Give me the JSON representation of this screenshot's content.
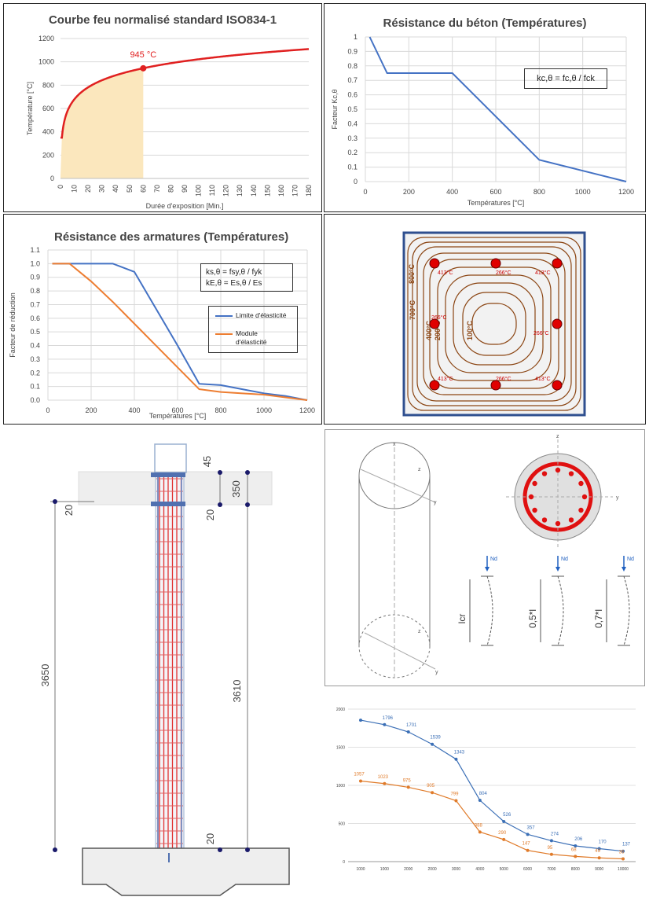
{
  "panel1": {
    "chart_data": {
      "type": "line",
      "title": "Courbe feu normalisé standard ISO834-1",
      "xlabel": "Durée d'exposition [Min.]",
      "ylabel": "Température [°C]",
      "ylim": [
        0,
        1200
      ],
      "yticks": [
        "0",
        "200",
        "400",
        "600",
        "800",
        "1000",
        "1200"
      ],
      "xticks": [
        "0",
        "10",
        "20",
        "30",
        "40",
        "50",
        "60",
        "70",
        "80",
        "90",
        "100",
        "110",
        "120",
        "130",
        "140",
        "150",
        "160",
        "170",
        "180"
      ],
      "xlim": [
        0,
        180
      ],
      "grid": true,
      "highlight": {
        "x": 60,
        "y": 945,
        "label": "945 °C"
      },
      "colors": {
        "line": "#e02020",
        "fill": "#fbe7bd"
      }
    }
  },
  "panel2": {
    "chart_data": {
      "type": "line",
      "title": "Résistance du béton (Températures)",
      "xlabel": "Températures [°C]",
      "ylabel": "Facteur Kc,θ",
      "xlim": [
        0,
        1200
      ],
      "ylim": [
        0,
        1
      ],
      "xticks": [
        "0",
        "200",
        "400",
        "600",
        "800",
        "1000",
        "1200"
      ],
      "yticks": [
        "0",
        "0.1",
        "0.2",
        "0.3",
        "0.4",
        "0.5",
        "0.6",
        "0.7",
        "0.8",
        "0.9",
        "1"
      ],
      "x": [
        20,
        100,
        400,
        600,
        800,
        1200
      ],
      "y": [
        1,
        0.75,
        0.75,
        0.45,
        0.15,
        0
      ],
      "annotation": "kc,θ = fc,θ / fck",
      "colors": {
        "line": "#4472c4"
      }
    }
  },
  "panel3": {
    "chart_data": {
      "type": "line",
      "title": "Résistance des armatures (Températures)",
      "xlabel": "Températures [°C]",
      "ylabel": "Facteur de réduction",
      "xlim": [
        0,
        1200
      ],
      "ylim": [
        0,
        1.1
      ],
      "xticks": [
        "0",
        "200",
        "400",
        "600",
        "800",
        "1000",
        "1200"
      ],
      "yticks": [
        "0.0",
        "0.1",
        "0.2",
        "0.3",
        "0.4",
        "0.5",
        "0.6",
        "0.7",
        "0.8",
        "0.9",
        "1.0",
        "1.1"
      ],
      "annotation_lines": [
        "ks,θ = fsy,θ / fyk",
        "kE,θ = Es,θ / Es"
      ],
      "series": [
        {
          "name": "Limite d'élasticité",
          "color": "#4472c4",
          "x": [
            20,
            100,
            200,
            300,
            400,
            500,
            600,
            700,
            800,
            900,
            1000,
            1100,
            1200
          ],
          "y": [
            1,
            1,
            1,
            1,
            0.94,
            0.67,
            0.4,
            0.12,
            0.11,
            0.08,
            0.05,
            0.03,
            0
          ]
        },
        {
          "name": "Module d'élasticité",
          "color": "#ed7d31",
          "x": [
            20,
            100,
            200,
            300,
            400,
            500,
            600,
            700,
            800,
            900,
            1000,
            1100,
            1200
          ],
          "y": [
            1,
            1,
            0.87,
            0.72,
            0.56,
            0.4,
            0.24,
            0.08,
            0.06,
            0.05,
            0.04,
            0.02,
            0
          ]
        }
      ],
      "legend": "right"
    }
  },
  "panel4": {
    "contour_labels": [
      "800°C",
      "700°C",
      "400°C",
      "200°C",
      "100°C"
    ],
    "bar_labels": {
      "tl": "413°C",
      "tm": "266°C",
      "tr": "413°C",
      "ml": "266°C",
      "mr": "266°C",
      "bl": "413°C",
      "bm": "266°C",
      "br": "413°C"
    },
    "colors": {
      "frame": "#2f4f8f",
      "contour": "#8b4513",
      "bar": "#e00000",
      "label": "#cc0000"
    }
  },
  "panel5": {
    "dims": {
      "d45": "45",
      "d350": "350",
      "d20a": "20",
      "d20b": "20",
      "d20c": "20",
      "d3650": "3650",
      "d3610": "3610"
    }
  },
  "panel6": {
    "axis_labels": {
      "x": "x",
      "z": "z",
      "y": "y",
      "z2": "z",
      "y2": "y",
      "y3": "y",
      "z3": "z"
    },
    "load_label": "Nd",
    "buckling": [
      "lcr",
      "0,5*l",
      "0,7*l"
    ]
  },
  "panel7": {
    "chart_data": {
      "type": "line",
      "categories": [
        "1000",
        "1000",
        "2000",
        "2000",
        "3000",
        "4000",
        "5000",
        "6000",
        "7000",
        "8000",
        "9000",
        "10000"
      ],
      "yticks": [
        "0",
        "500",
        "1000",
        "1500",
        "2000"
      ],
      "ylim": [
        0,
        2000
      ],
      "series": [
        {
          "color": "#3b6fb6",
          "values": [
            1855,
            1796,
            1701,
            1539,
            1343,
            804,
            526,
            357,
            274,
            206,
            170,
            137
          ],
          "labels": [
            "",
            "1796",
            "1701",
            "1539",
            "1343",
            "804",
            "526",
            "357",
            "274",
            "206",
            "170",
            "137"
          ]
        },
        {
          "color": "#e07b2a",
          "values": [
            1057,
            1023,
            975,
            905,
            799,
            388,
            290,
            147,
            95,
            68,
            49,
            36
          ],
          "labels": [
            "1057",
            "1023",
            "975",
            "905",
            "799",
            "388",
            "290",
            "147",
            "95",
            "68",
            "49",
            "36"
          ]
        }
      ]
    }
  }
}
